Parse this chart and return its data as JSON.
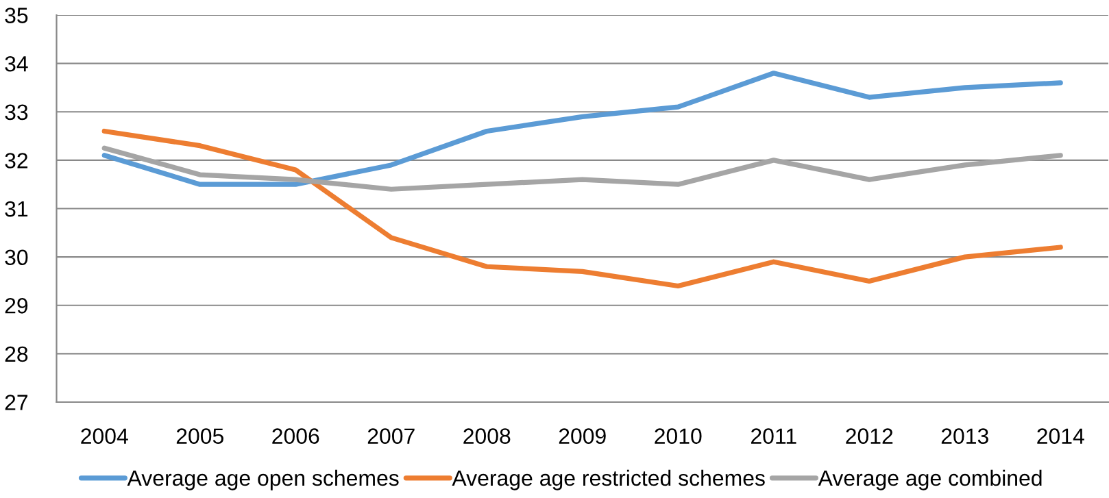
{
  "chart_data": {
    "type": "line",
    "categories": [
      "2004",
      "2005",
      "2006",
      "2007",
      "2008",
      "2009",
      "2010",
      "2011",
      "2012",
      "2013",
      "2014"
    ],
    "series": [
      {
        "name": "Average age open schemes",
        "color": "#5b9bd5",
        "values": [
          32.1,
          31.5,
          31.5,
          31.9,
          32.6,
          32.9,
          33.1,
          33.8,
          33.3,
          33.5,
          33.6
        ]
      },
      {
        "name": "Average age restricted schemes",
        "color": "#ed7d31",
        "values": [
          32.6,
          32.3,
          31.8,
          30.4,
          29.8,
          29.7,
          29.4,
          29.9,
          29.5,
          30.0,
          30.2
        ]
      },
      {
        "name": "Average age combined",
        "color": "#a5a5a5",
        "values": [
          32.25,
          31.7,
          31.6,
          31.4,
          31.5,
          31.6,
          31.5,
          32.0,
          31.6,
          31.9,
          32.1
        ]
      }
    ],
    "ylim": [
      27,
      35
    ],
    "yticks": [
      27,
      28,
      29,
      30,
      31,
      32,
      33,
      34,
      35
    ],
    "grid": "y",
    "legend": "bottom",
    "marker": "none",
    "line_style": "solid"
  }
}
